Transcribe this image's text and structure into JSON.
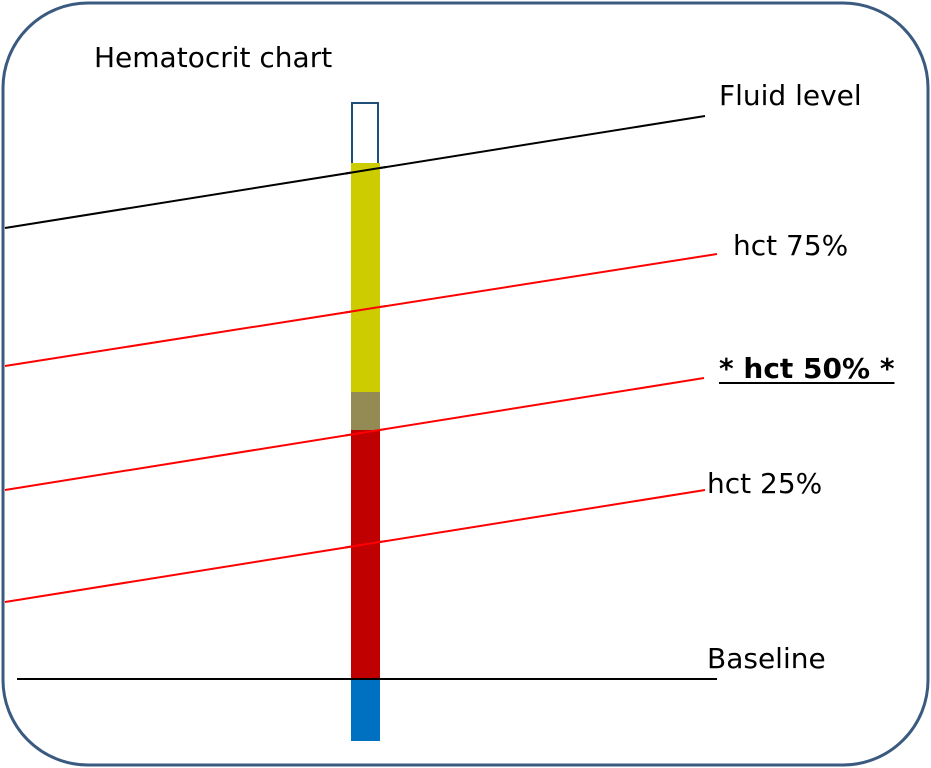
{
  "title": "Hematocrit chart",
  "labels": {
    "fluid_level": "Fluid level",
    "hct75": "hct 75%",
    "hct50": "* hct 50% *",
    "hct25": "hct 25%",
    "baseline": "Baseline"
  },
  "tube_segments": [
    {
      "name": "plasma",
      "color": "#cccc00"
    },
    {
      "name": "buffy-coat",
      "color": "#948a54"
    },
    {
      "name": "red-cells",
      "color": "#c00000"
    },
    {
      "name": "clay-plug",
      "color": "#0070c0"
    }
  ],
  "colors": {
    "frame_border": "#3b5a80",
    "reference_line": "#000000",
    "hct_line": "#ff0000",
    "empty_tube_outline": "#1f4e79"
  }
}
